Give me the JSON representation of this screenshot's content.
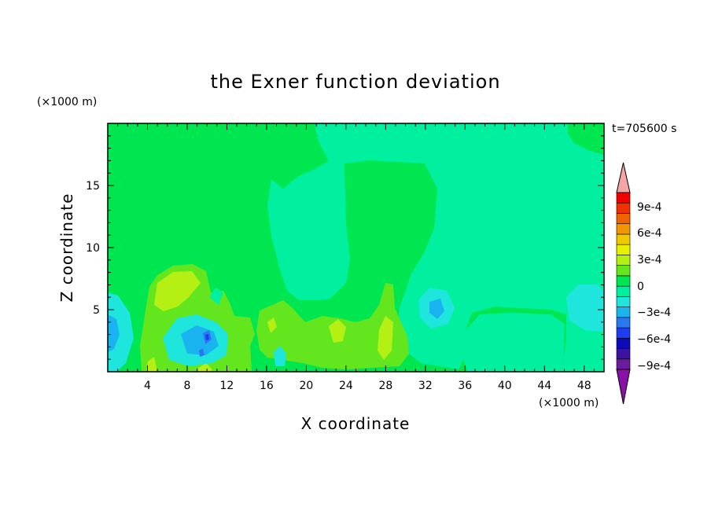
{
  "chart_data": {
    "type": "heatmap",
    "title": "the Exner function deviation",
    "xlabel": "X coordinate",
    "ylabel": "Z coordinate",
    "x_unit": "(×1000 m)",
    "y_unit": "(×1000 m)",
    "time_label": "t=705600 s",
    "xlim": [
      0,
      50
    ],
    "ylim": [
      0,
      20
    ],
    "x_ticks": [
      4,
      8,
      12,
      16,
      20,
      24,
      28,
      32,
      36,
      40,
      44,
      48
    ],
    "y_ticks": [
      5,
      10,
      15
    ],
    "colorbar": {
      "levels": [
        -0.0011,
        -0.001,
        -0.0009,
        -0.0008,
        -0.0007,
        -0.0006,
        -0.0005,
        -0.0004,
        -0.0003,
        -0.0002,
        -0.0001,
        0,
        0.0001,
        0.0002,
        0.0003,
        0.0004,
        0.0005,
        0.0006,
        0.0007,
        0.0008,
        0.0009,
        0.001,
        0.0011
      ],
      "colors": [
        "#6a1c9a",
        "#3a14a0",
        "#0a0ab8",
        "#1e3cf0",
        "#2a78f0",
        "#19b4f0",
        "#1ee6dc",
        "#00f0a0",
        "#00e650",
        "#64e61e",
        "#b4f014",
        "#e6f000",
        "#f0c800",
        "#f09600",
        "#f06400",
        "#f03200",
        "#f00000"
      ],
      "over_color": "#f4a6a6",
      "under_color": "#8a10a8",
      "tick_labels": [
        "9e-4",
        "6e-4",
        "3e-4",
        "0",
        "−3e-4",
        "−6e-4",
        "−9e-4"
      ]
    },
    "regions": [
      {
        "level": "-1e-4 to 0",
        "color": "#00f0a0",
        "description": "background"
      },
      {
        "level": "0 to 1e-4",
        "color": "#00e650"
      },
      {
        "level": "1e-4 to 2e-4",
        "color": "#64e61e"
      },
      {
        "level": "2e-4 to 3e-4",
        "color": "#b4f014"
      },
      {
        "level": "-2e-4 to -1e-4",
        "color": "#1ee6dc"
      },
      {
        "level": "-3e-4 to -2e-4",
        "color": "#19b4f0"
      },
      {
        "level": "-5e-4 to -3e-4",
        "color": "#2a78f0"
      },
      {
        "level": "-7e-4 to -5e-4",
        "color": "#1e3cf0"
      }
    ]
  }
}
